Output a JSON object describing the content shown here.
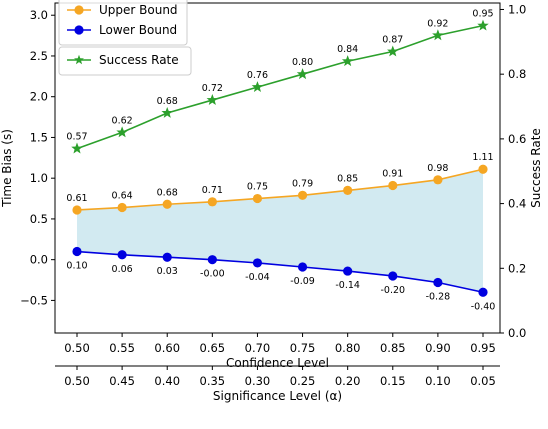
{
  "chart_data": {
    "type": "line",
    "x": [
      0.5,
      0.55,
      0.6,
      0.65,
      0.7,
      0.75,
      0.8,
      0.85,
      0.9,
      0.95
    ],
    "x_tick_labels": [
      "0.50",
      "0.55",
      "0.60",
      "0.65",
      "0.70",
      "0.75",
      "0.80",
      "0.85",
      "0.90",
      "0.95"
    ],
    "xlabel": "Confidence Level",
    "secondary_x": {
      "tick_labels": [
        "0.50",
        "0.45",
        "0.40",
        "0.35",
        "0.30",
        "0.25",
        "0.20",
        "0.15",
        "0.10",
        "0.05"
      ],
      "label": "Significance Level (α)",
      "position": "bottom"
    },
    "ylabel": "Time Bias (s)",
    "ylim": [
      -0.9,
      3.15
    ],
    "y_ticks": [
      -0.5,
      0.0,
      0.5,
      1.0,
      1.5,
      2.0,
      2.5,
      3.0
    ],
    "y_tick_labels": [
      "−0.5",
      "0.0",
      "0.5",
      "1.0",
      "1.5",
      "2.0",
      "2.5",
      "3.0"
    ],
    "y2label": "Success Rate",
    "y2lim": [
      0.0,
      1.02
    ],
    "y2_ticks": [
      0.0,
      0.2,
      0.4,
      0.6,
      0.8,
      1.0
    ],
    "y2_tick_labels": [
      "0.0",
      "0.2",
      "0.4",
      "0.6",
      "0.8",
      "1.0"
    ],
    "series": [
      {
        "name": "Upper Bound",
        "axis": "left",
        "color": "#f5a623",
        "marker": "circle",
        "values": [
          0.61,
          0.64,
          0.68,
          0.71,
          0.75,
          0.79,
          0.85,
          0.91,
          0.98,
          1.11
        ],
        "labels": [
          "0.61",
          "0.64",
          "0.68",
          "0.71",
          "0.75",
          "0.79",
          "0.85",
          "0.91",
          "0.98",
          "1.11"
        ]
      },
      {
        "name": "Lower Bound",
        "axis": "left",
        "color": "#0000e0",
        "marker": "circle",
        "values": [
          0.1,
          0.06,
          0.03,
          -0.0,
          -0.04,
          -0.09,
          -0.14,
          -0.2,
          -0.28,
          -0.4
        ],
        "labels": [
          "0.10",
          "0.06",
          "0.03",
          "-0.00",
          "-0.04",
          "-0.09",
          "-0.14",
          "-0.20",
          "-0.28",
          "-0.40"
        ]
      },
      {
        "name": "Success Rate",
        "axis": "right",
        "color": "#2ca02c",
        "marker": "star",
        "values": [
          0.57,
          0.62,
          0.68,
          0.72,
          0.76,
          0.8,
          0.84,
          0.87,
          0.92,
          0.95
        ],
        "labels": [
          "0.57",
          "0.62",
          "0.68",
          "0.72",
          "0.76",
          "0.80",
          "0.84",
          "0.87",
          "0.92",
          "0.95"
        ]
      }
    ],
    "fill_between": {
      "upper": "Upper Bound",
      "lower": "Lower Bound",
      "color": "#add8e6"
    },
    "legends": [
      {
        "entries": [
          "Upper Bound",
          "Lower Bound"
        ],
        "placement": "top-left"
      },
      {
        "entries": [
          "Success Rate"
        ],
        "placement": "upper-left"
      }
    ],
    "grid": false
  }
}
